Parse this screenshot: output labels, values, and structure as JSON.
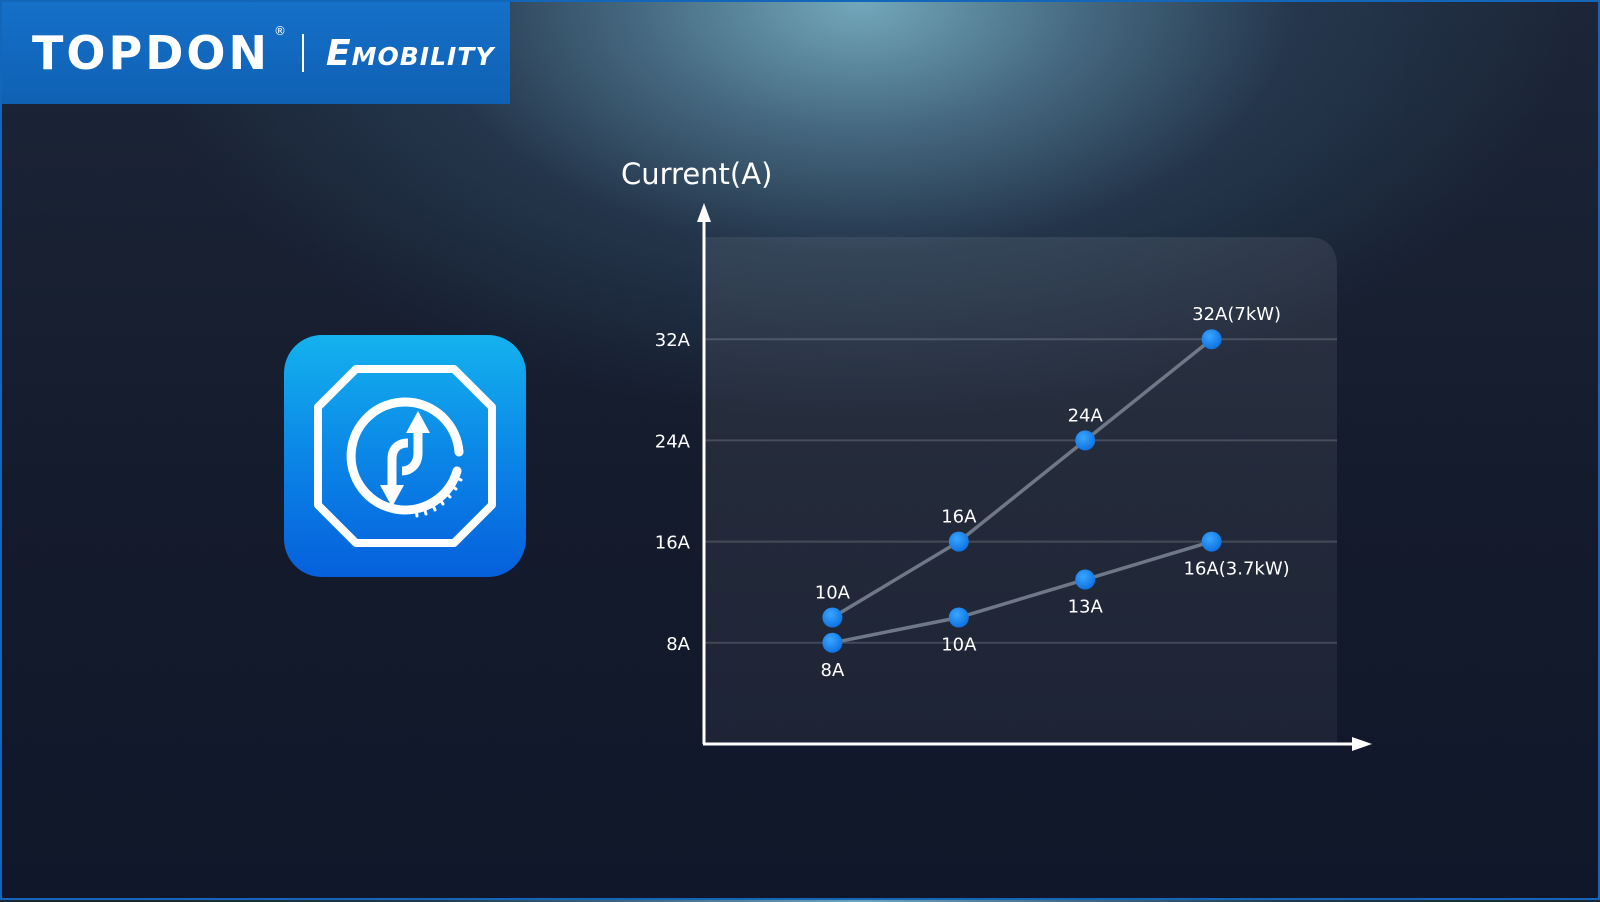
{
  "brand": {
    "logo": "TOPDON",
    "registered_mark": "®",
    "sub_first": "E",
    "sub_rest": "MOBILITY"
  },
  "app_icon": {
    "icon": "charge-sync-icon",
    "color_top": "#14b2ee",
    "color_bottom": "#0660dc"
  },
  "colors": {
    "accent": "#1570c8",
    "point": "#1a8cf0",
    "line": "#6f7886"
  },
  "chart_data": {
    "type": "line",
    "ylabel": "Current(A)",
    "xlabel": "",
    "y_ticks": [
      {
        "value": 8,
        "label": "8A"
      },
      {
        "value": 16,
        "label": "16A"
      },
      {
        "value": 24,
        "label": "24A"
      },
      {
        "value": 32,
        "label": "32A"
      }
    ],
    "ylim": [
      0,
      40
    ],
    "x": [
      1,
      2,
      3,
      4
    ],
    "grid": true,
    "legend": "none",
    "series": [
      {
        "values": [
          10,
          16,
          24,
          32
        ],
        "labels": [
          "10A",
          "16A",
          "24A",
          "32A(7kW)"
        ],
        "label_position": "above"
      },
      {
        "values": [
          8,
          10,
          13,
          16
        ],
        "labels": [
          "8A",
          "10A",
          "13A",
          "16A(3.7kW)"
        ],
        "label_position": "below"
      }
    ]
  }
}
